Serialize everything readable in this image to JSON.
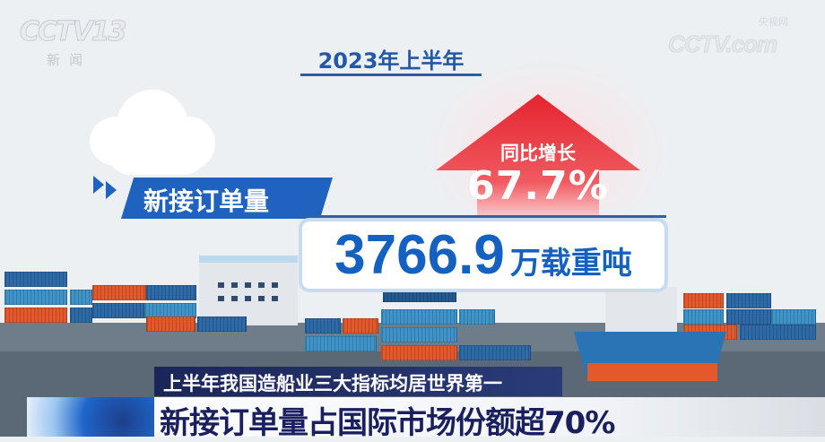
{
  "logos": {
    "channel": {
      "mark": "CCTV13",
      "subtitle": "新闻"
    },
    "site": {
      "mark": "CCTV.com",
      "subtitle": "央视网"
    }
  },
  "infographic": {
    "period_title": "2023年上半年",
    "metric_label": "新接订单量",
    "growth_label": "同比增长",
    "growth_value": "67.7%",
    "value": "3766.9",
    "unit": "万载重吨"
  },
  "captions": {
    "subtitle": "上半年我国造船业三大指标均居世界第一",
    "headline": "新接订单量占国际市场份额超70%"
  },
  "colors": {
    "accent_blue": "#1561c2",
    "growth_red": "#e4313b",
    "caption_navy": "#1a1f5e",
    "container_orange": "#e4592c"
  }
}
